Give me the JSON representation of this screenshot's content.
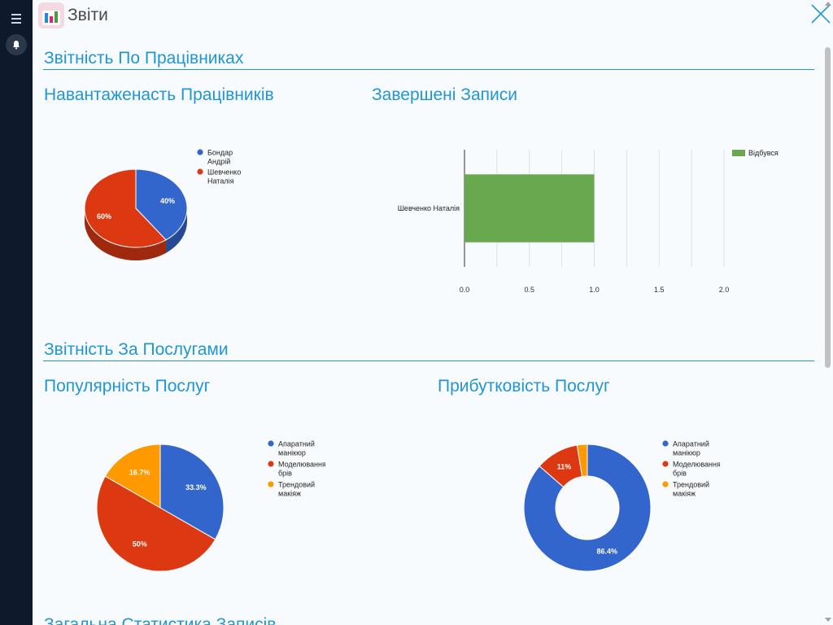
{
  "header": {
    "title": "Звіти"
  },
  "icons": {
    "menu": "menu-icon",
    "bell": "bell-icon",
    "app": "bar-chart-icon",
    "close": "close-icon"
  },
  "sections": [
    {
      "title": "Звітність По Працівниках"
    },
    {
      "title": "Звітність За Послугами"
    },
    {
      "title": "Загальна Статистика Записів"
    }
  ],
  "charts": {
    "workload": {
      "title": "Навантаженасть Працівників"
    },
    "completed": {
      "title": "Завершені Записи"
    },
    "popularity": {
      "title": "Популярність Послуг"
    },
    "profitability": {
      "title": "Прибутковість Послуг"
    }
  },
  "chart_data": [
    {
      "type": "pie",
      "title": "Навантаженасть Працівників",
      "three_d": true,
      "categories": [
        "Бондар Андрій",
        "Шевченко Наталія"
      ],
      "legend_lines": [
        [
          "Бондар",
          "Андрій"
        ],
        [
          "Шевченко",
          "Наталія"
        ]
      ],
      "values": [
        40,
        60
      ],
      "labels": [
        "40%",
        "60%"
      ],
      "colors": [
        "#3366cc",
        "#dc3912"
      ],
      "legend": "right"
    },
    {
      "type": "bar",
      "orientation": "horizontal",
      "title": "Завершені Записи",
      "categories": [
        "Шевченко Наталія"
      ],
      "series": [
        {
          "name": "Відбувся",
          "values": [
            1.0
          ],
          "color": "#6aa84f"
        }
      ],
      "xlim": [
        0,
        2.0
      ],
      "xticks": [
        "0.0",
        "0.5",
        "1.0",
        "1.5",
        "2.0"
      ],
      "grid": true,
      "legend": "top-right"
    },
    {
      "type": "pie",
      "title": "Популярність Послуг",
      "categories": [
        "Апаратний манікюр",
        "Моделювання брів",
        "Трендовий макіяж"
      ],
      "legend_lines": [
        [
          "Апаратний",
          "манікюр"
        ],
        [
          "Моделювання",
          "брів"
        ],
        [
          "Трендовий",
          "макіяж"
        ]
      ],
      "values": [
        33.3,
        50,
        16.7
      ],
      "labels": [
        "33.3%",
        "50%",
        "16.7%"
      ],
      "colors": [
        "#3366cc",
        "#dc3912",
        "#ff9900"
      ],
      "legend": "right"
    },
    {
      "type": "pie",
      "title": "Прибутковість Послуг",
      "donut": true,
      "categories": [
        "Апаратний манікюр",
        "Моделювання брів",
        "Трендовий макіяж"
      ],
      "legend_lines": [
        [
          "Апаратний",
          "манікюр"
        ],
        [
          "Моделювання",
          "брів"
        ],
        [
          "Трендовий",
          "макіяж"
        ]
      ],
      "values": [
        86.4,
        11,
        2.6
      ],
      "labels": [
        "86.4%",
        "11%",
        ""
      ],
      "colors": [
        "#3366cc",
        "#dc3912",
        "#ff9900"
      ],
      "legend": "right"
    }
  ]
}
